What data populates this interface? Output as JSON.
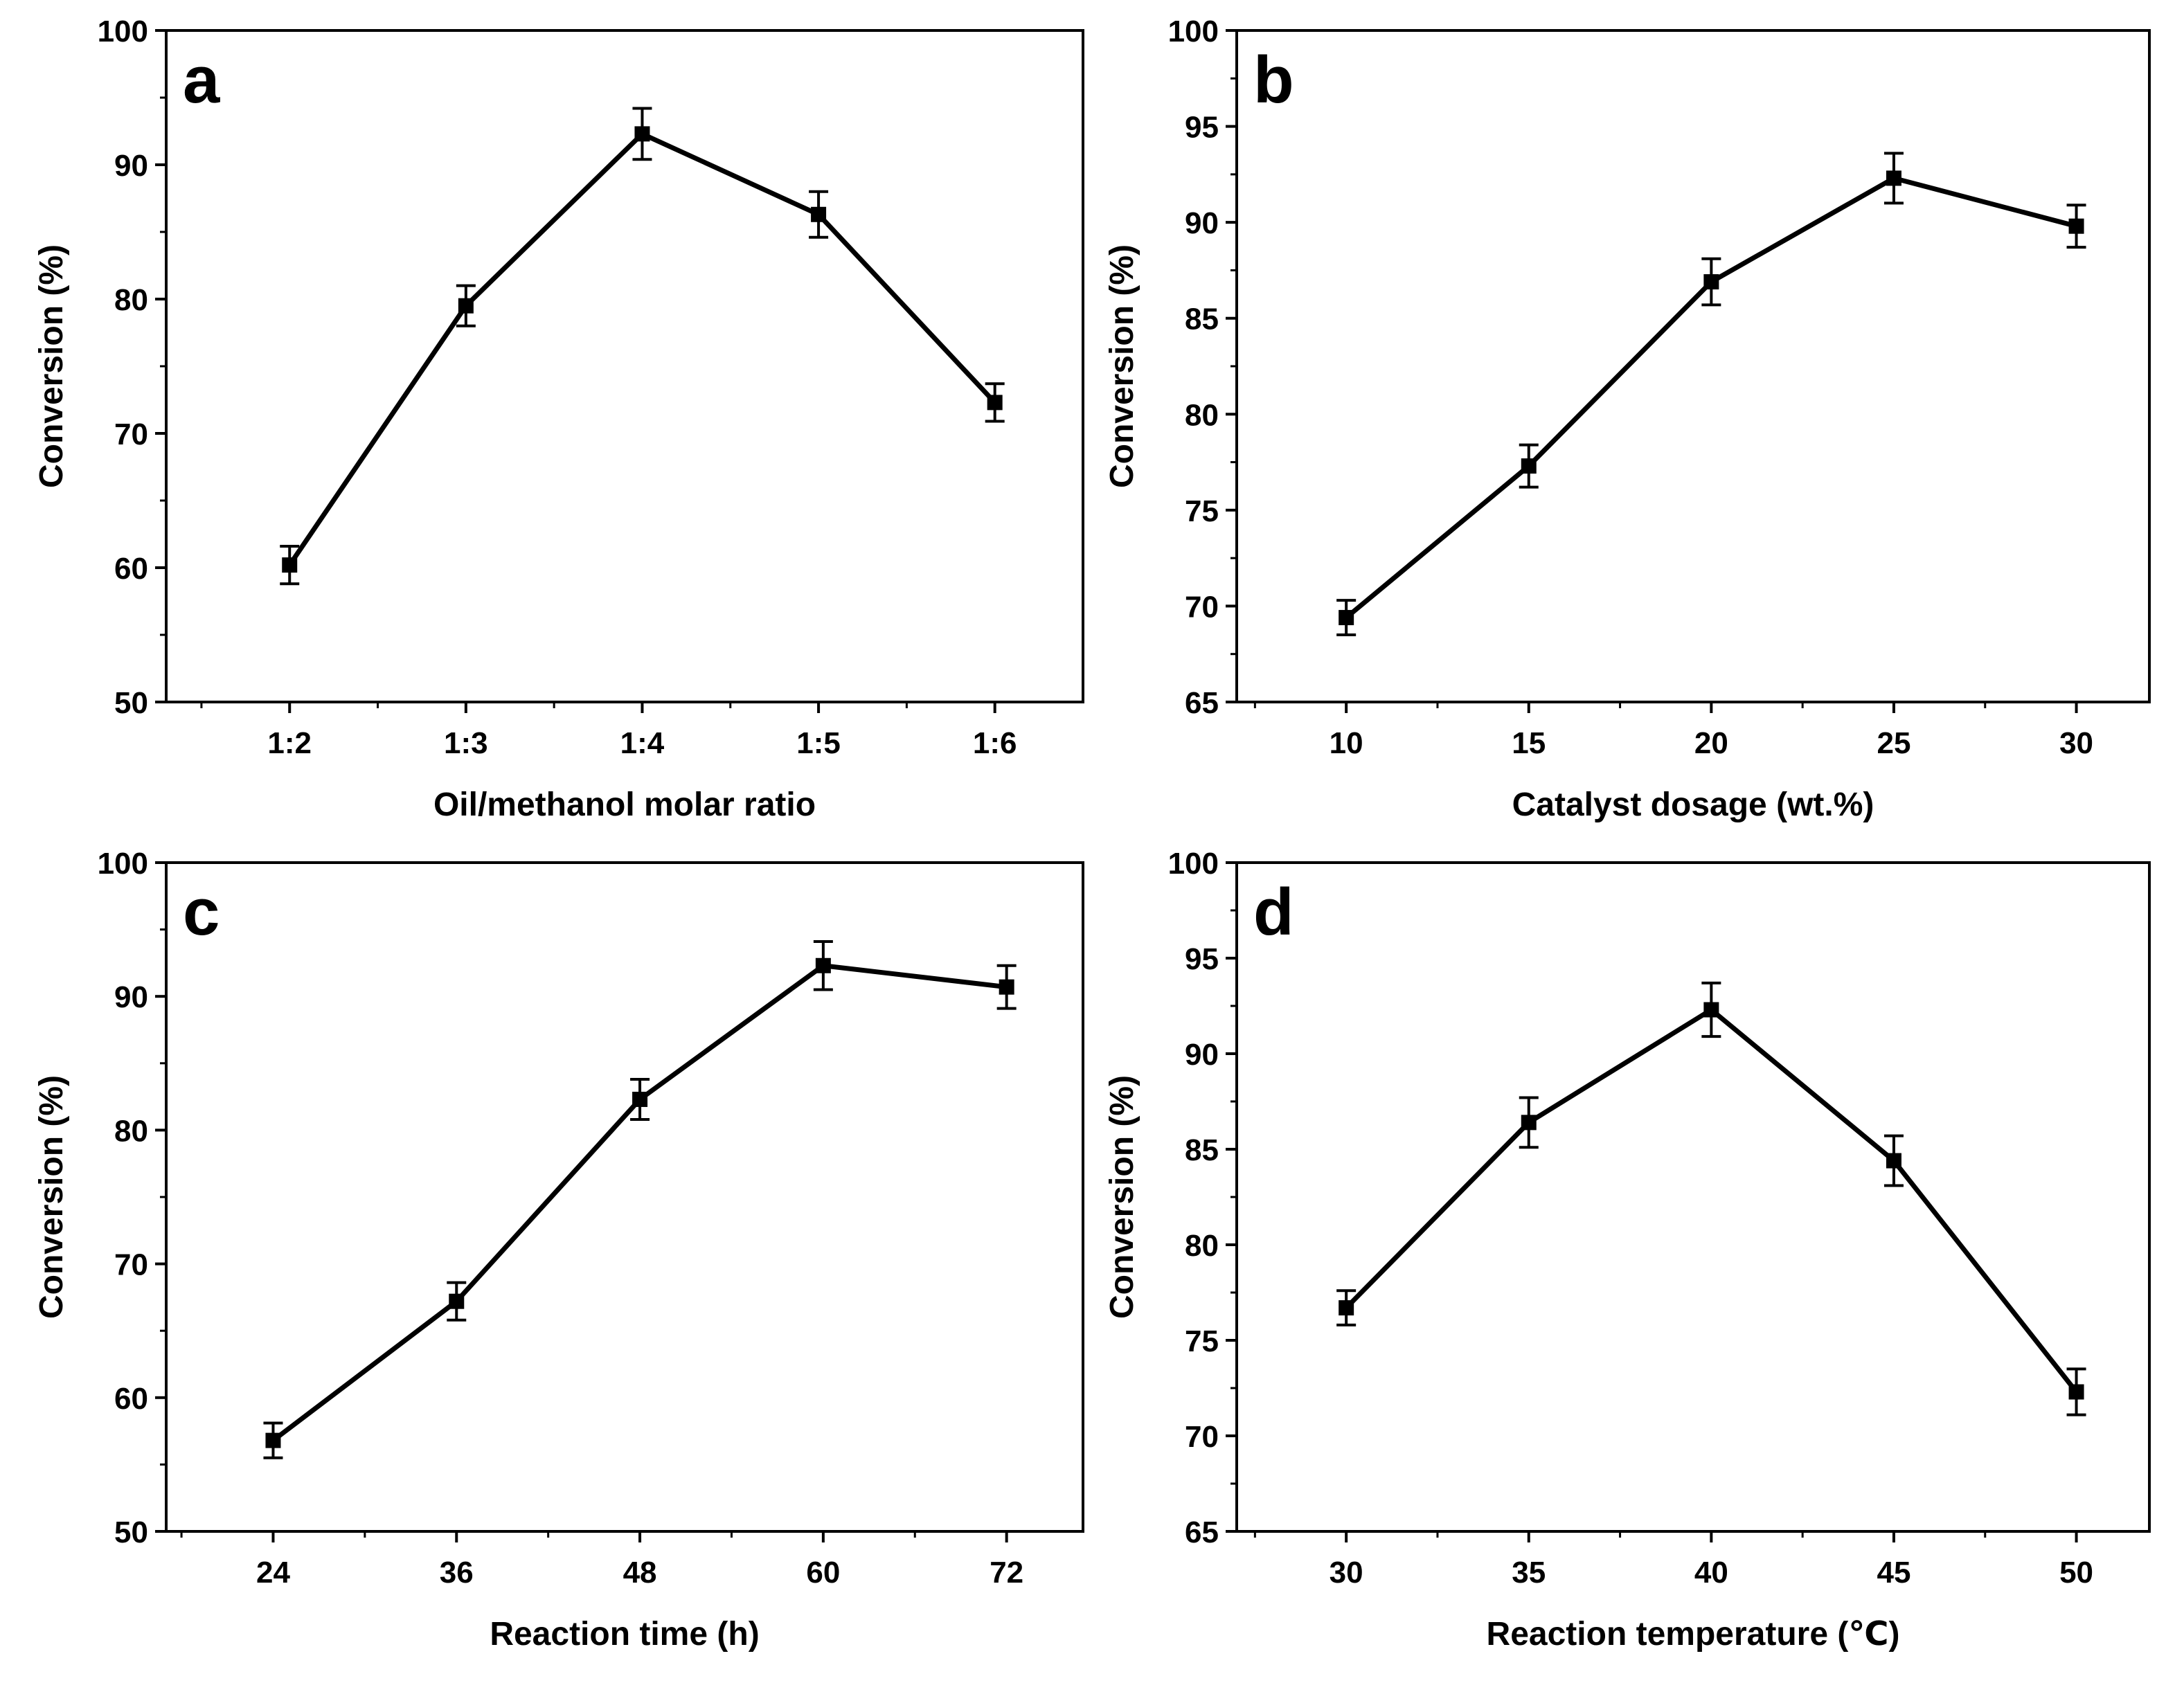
{
  "figure": {
    "colors": {
      "line": "#000000",
      "background": "#ffffff"
    }
  },
  "chart_data": [
    {
      "panel": "a",
      "type": "line",
      "xlabel": "Oil/methanol molar ratio",
      "ylabel": "Conversion (%)",
      "categories": [
        "1:2",
        "1:3",
        "1:4",
        "1:5",
        "1:6"
      ],
      "values": [
        60.2,
        79.5,
        92.3,
        86.3,
        72.3
      ],
      "errors": [
        1.4,
        1.5,
        1.9,
        1.7,
        1.4
      ],
      "ylim": [
        50,
        100
      ],
      "yticks": [
        50,
        60,
        70,
        80,
        90,
        100
      ],
      "xlim": [
        0.3,
        5.5
      ],
      "marker": "square",
      "grid": false
    },
    {
      "panel": "b",
      "type": "line",
      "xlabel": "Catalyst dosage (wt.%)",
      "ylabel": "Conversion (%)",
      "x": [
        10,
        15,
        20,
        25,
        30
      ],
      "values": [
        69.4,
        77.3,
        86.9,
        92.3,
        89.8
      ],
      "errors": [
        0.9,
        1.1,
        1.2,
        1.3,
        1.1
      ],
      "ylim": [
        65,
        100
      ],
      "yticks": [
        65,
        70,
        75,
        80,
        85,
        90,
        95,
        100
      ],
      "xticks": [
        10,
        15,
        20,
        25,
        30
      ],
      "xlim": [
        7,
        32
      ],
      "marker": "square",
      "grid": false
    },
    {
      "panel": "c",
      "type": "line",
      "xlabel": "Reaction time (h)",
      "ylabel": "Conversion (%)",
      "x": [
        24,
        36,
        48,
        60,
        72
      ],
      "values": [
        56.8,
        67.2,
        82.3,
        92.3,
        90.7
      ],
      "errors": [
        1.3,
        1.4,
        1.5,
        1.8,
        1.6
      ],
      "ylim": [
        50,
        100
      ],
      "yticks": [
        50,
        60,
        70,
        80,
        90,
        100
      ],
      "xticks": [
        24,
        36,
        48,
        60,
        72
      ],
      "xlim": [
        17,
        77
      ],
      "marker": "square",
      "grid": false
    },
    {
      "panel": "d",
      "type": "line",
      "xlabel": "Reaction temperature (℃)",
      "ylabel": "Conversion (%)",
      "x": [
        30,
        35,
        40,
        45,
        50
      ],
      "values": [
        76.7,
        86.4,
        92.3,
        84.4,
        72.3
      ],
      "errors": [
        0.9,
        1.3,
        1.4,
        1.3,
        1.2
      ],
      "ylim": [
        65,
        100
      ],
      "yticks": [
        65,
        70,
        75,
        80,
        85,
        90,
        95,
        100
      ],
      "xticks": [
        30,
        35,
        40,
        45,
        50
      ],
      "xlim": [
        27,
        52
      ],
      "marker": "square",
      "grid": false
    }
  ]
}
